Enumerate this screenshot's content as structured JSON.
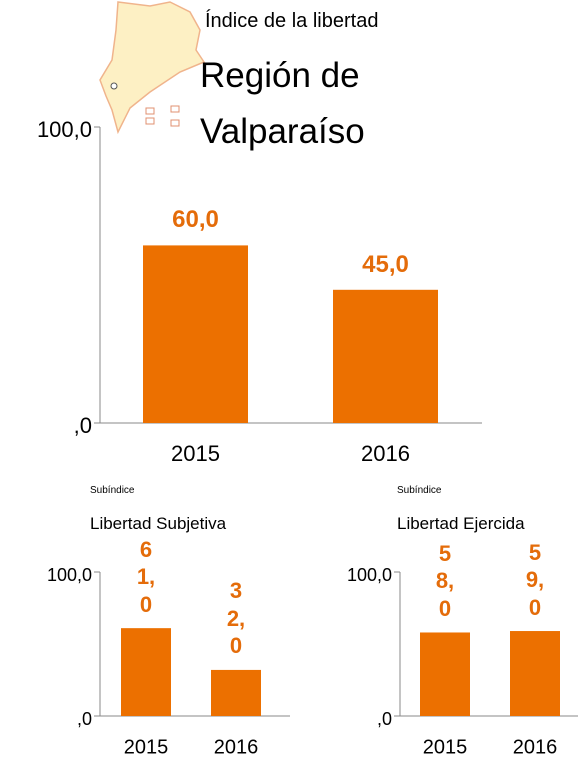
{
  "chart_data": [
    {
      "type": "bar",
      "title": "Índice de la libertad",
      "subtitle": "Región de Valparaíso",
      "categories": [
        "2015",
        "2016"
      ],
      "values": [
        60,
        45
      ],
      "value_labels": [
        "60,0",
        "45,0"
      ],
      "color": "#ec7000",
      "label_color": "#e46c0a",
      "ylim": [
        0,
        100
      ],
      "yticks": [
        {
          "value": 0,
          "label": ",0"
        },
        {
          "value": 100,
          "label": "100,0"
        }
      ]
    },
    {
      "type": "bar",
      "subtitle": "Subíndice",
      "title": "Libertad Subjetiva",
      "categories": [
        "2015",
        "2016"
      ],
      "values": [
        61,
        32
      ],
      "value_labels": [
        "61,0",
        "32,0"
      ],
      "color": "#ec7000",
      "label_color": "#e46c0a",
      "ylim": [
        0,
        100
      ],
      "yticks": [
        {
          "value": 0,
          "label": ",0"
        },
        {
          "value": 100,
          "label": "100,0"
        }
      ]
    },
    {
      "type": "bar",
      "subtitle": "Subíndice",
      "title": "Libertad Ejercida",
      "categories": [
        "2015",
        "2016"
      ],
      "values": [
        58,
        59
      ],
      "value_labels": [
        "58,0",
        "59,0"
      ],
      "color": "#ec7000",
      "label_color": "#e46c0a",
      "ylim": [
        0,
        100
      ],
      "yticks": [
        {
          "value": 0,
          "label": ",0"
        },
        {
          "value": 100,
          "label": "100,0"
        }
      ]
    }
  ]
}
